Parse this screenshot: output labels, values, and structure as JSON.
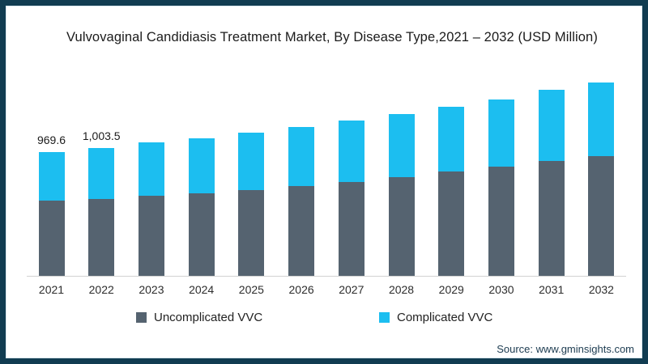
{
  "title": "Vulvovaginal Candidiasis Treatment Market, By Disease Type,2021 – 2032 (USD Million)",
  "source": "Source: www.gminsights.com",
  "colors": {
    "uncomplicated": "#556370",
    "complicated": "#1cbef0",
    "frame_border": "#113c51",
    "axis_line": "#d2d2d2"
  },
  "legend": [
    {
      "label": "Uncomplicated VVC",
      "color": "#556370"
    },
    {
      "label": "Complicated VVC",
      "color": "#1cbef0"
    }
  ],
  "chart_data": {
    "type": "bar",
    "stacked": true,
    "title": "Vulvovaginal Candidiasis Treatment Market, By Disease Type,2021 – 2032 (USD Million)",
    "categories": [
      "2021",
      "2022",
      "2023",
      "2024",
      "2025",
      "2026",
      "2027",
      "2028",
      "2029",
      "2030",
      "2031",
      "2032"
    ],
    "series": [
      {
        "name": "Uncomplicated VVC",
        "color": "#556370",
        "values": [
          588,
          601,
          626,
          646,
          671,
          702,
          735,
          775,
          820,
          860,
          900,
          940
        ]
      },
      {
        "name": "Complicated VVC",
        "color": "#1cbef0",
        "values": [
          381.6,
          402.5,
          416,
          434,
          449,
          463,
          480,
          497,
          510,
          525,
          557,
          581
        ]
      }
    ],
    "totals": [
      969.6,
      1003.5,
      1042,
      1080,
      1120,
      1165,
      1215,
      1272,
      1330,
      1385,
      1457,
      1521
    ],
    "data_labels": {
      "2021": "969.6",
      "2022": "1,003.5"
    },
    "xlabel": "",
    "ylabel": "",
    "ylim": [
      0,
      1600
    ],
    "grid": false,
    "legend_position": "bottom"
  }
}
